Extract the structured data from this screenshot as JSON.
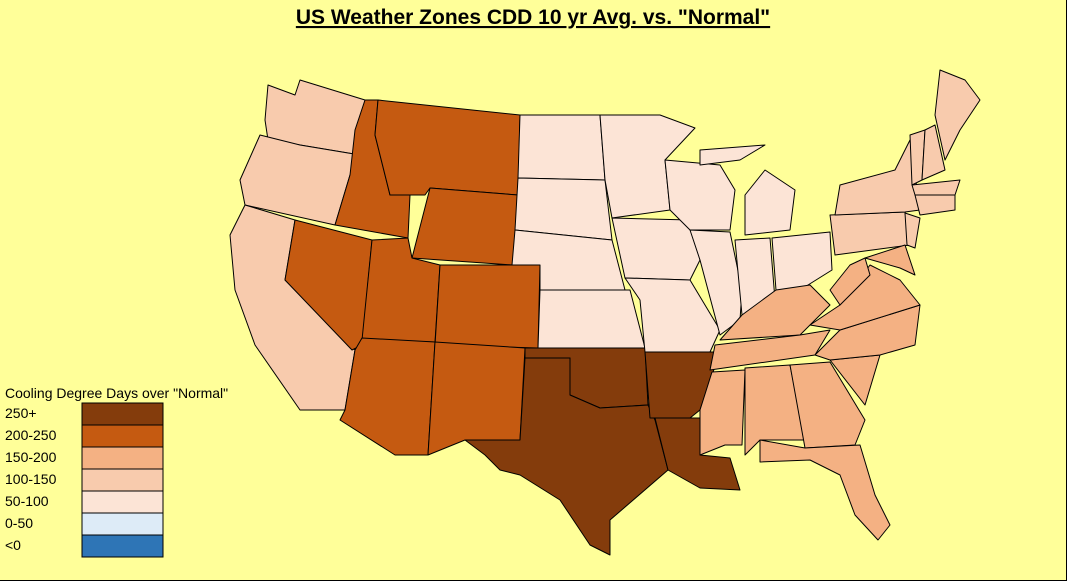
{
  "title": "US Weather Zones CDD 10 yr Avg. vs. \"Normal\"",
  "legend": {
    "title": "Cooling Degree Days over \"Normal\"",
    "items": [
      {
        "label": "250+",
        "color": "#843c0c"
      },
      {
        "label": "200-250",
        "color": "#c55a11"
      },
      {
        "label": "150-200",
        "color": "#f4b183"
      },
      {
        "label": "100-150",
        "color": "#f8cbad"
      },
      {
        "label": "50-100",
        "color": "#fce4d6"
      },
      {
        "label": "0-50",
        "color": "#ddebf7"
      },
      {
        "label": "<0",
        "color": "#2e75b6"
      }
    ]
  }
}
